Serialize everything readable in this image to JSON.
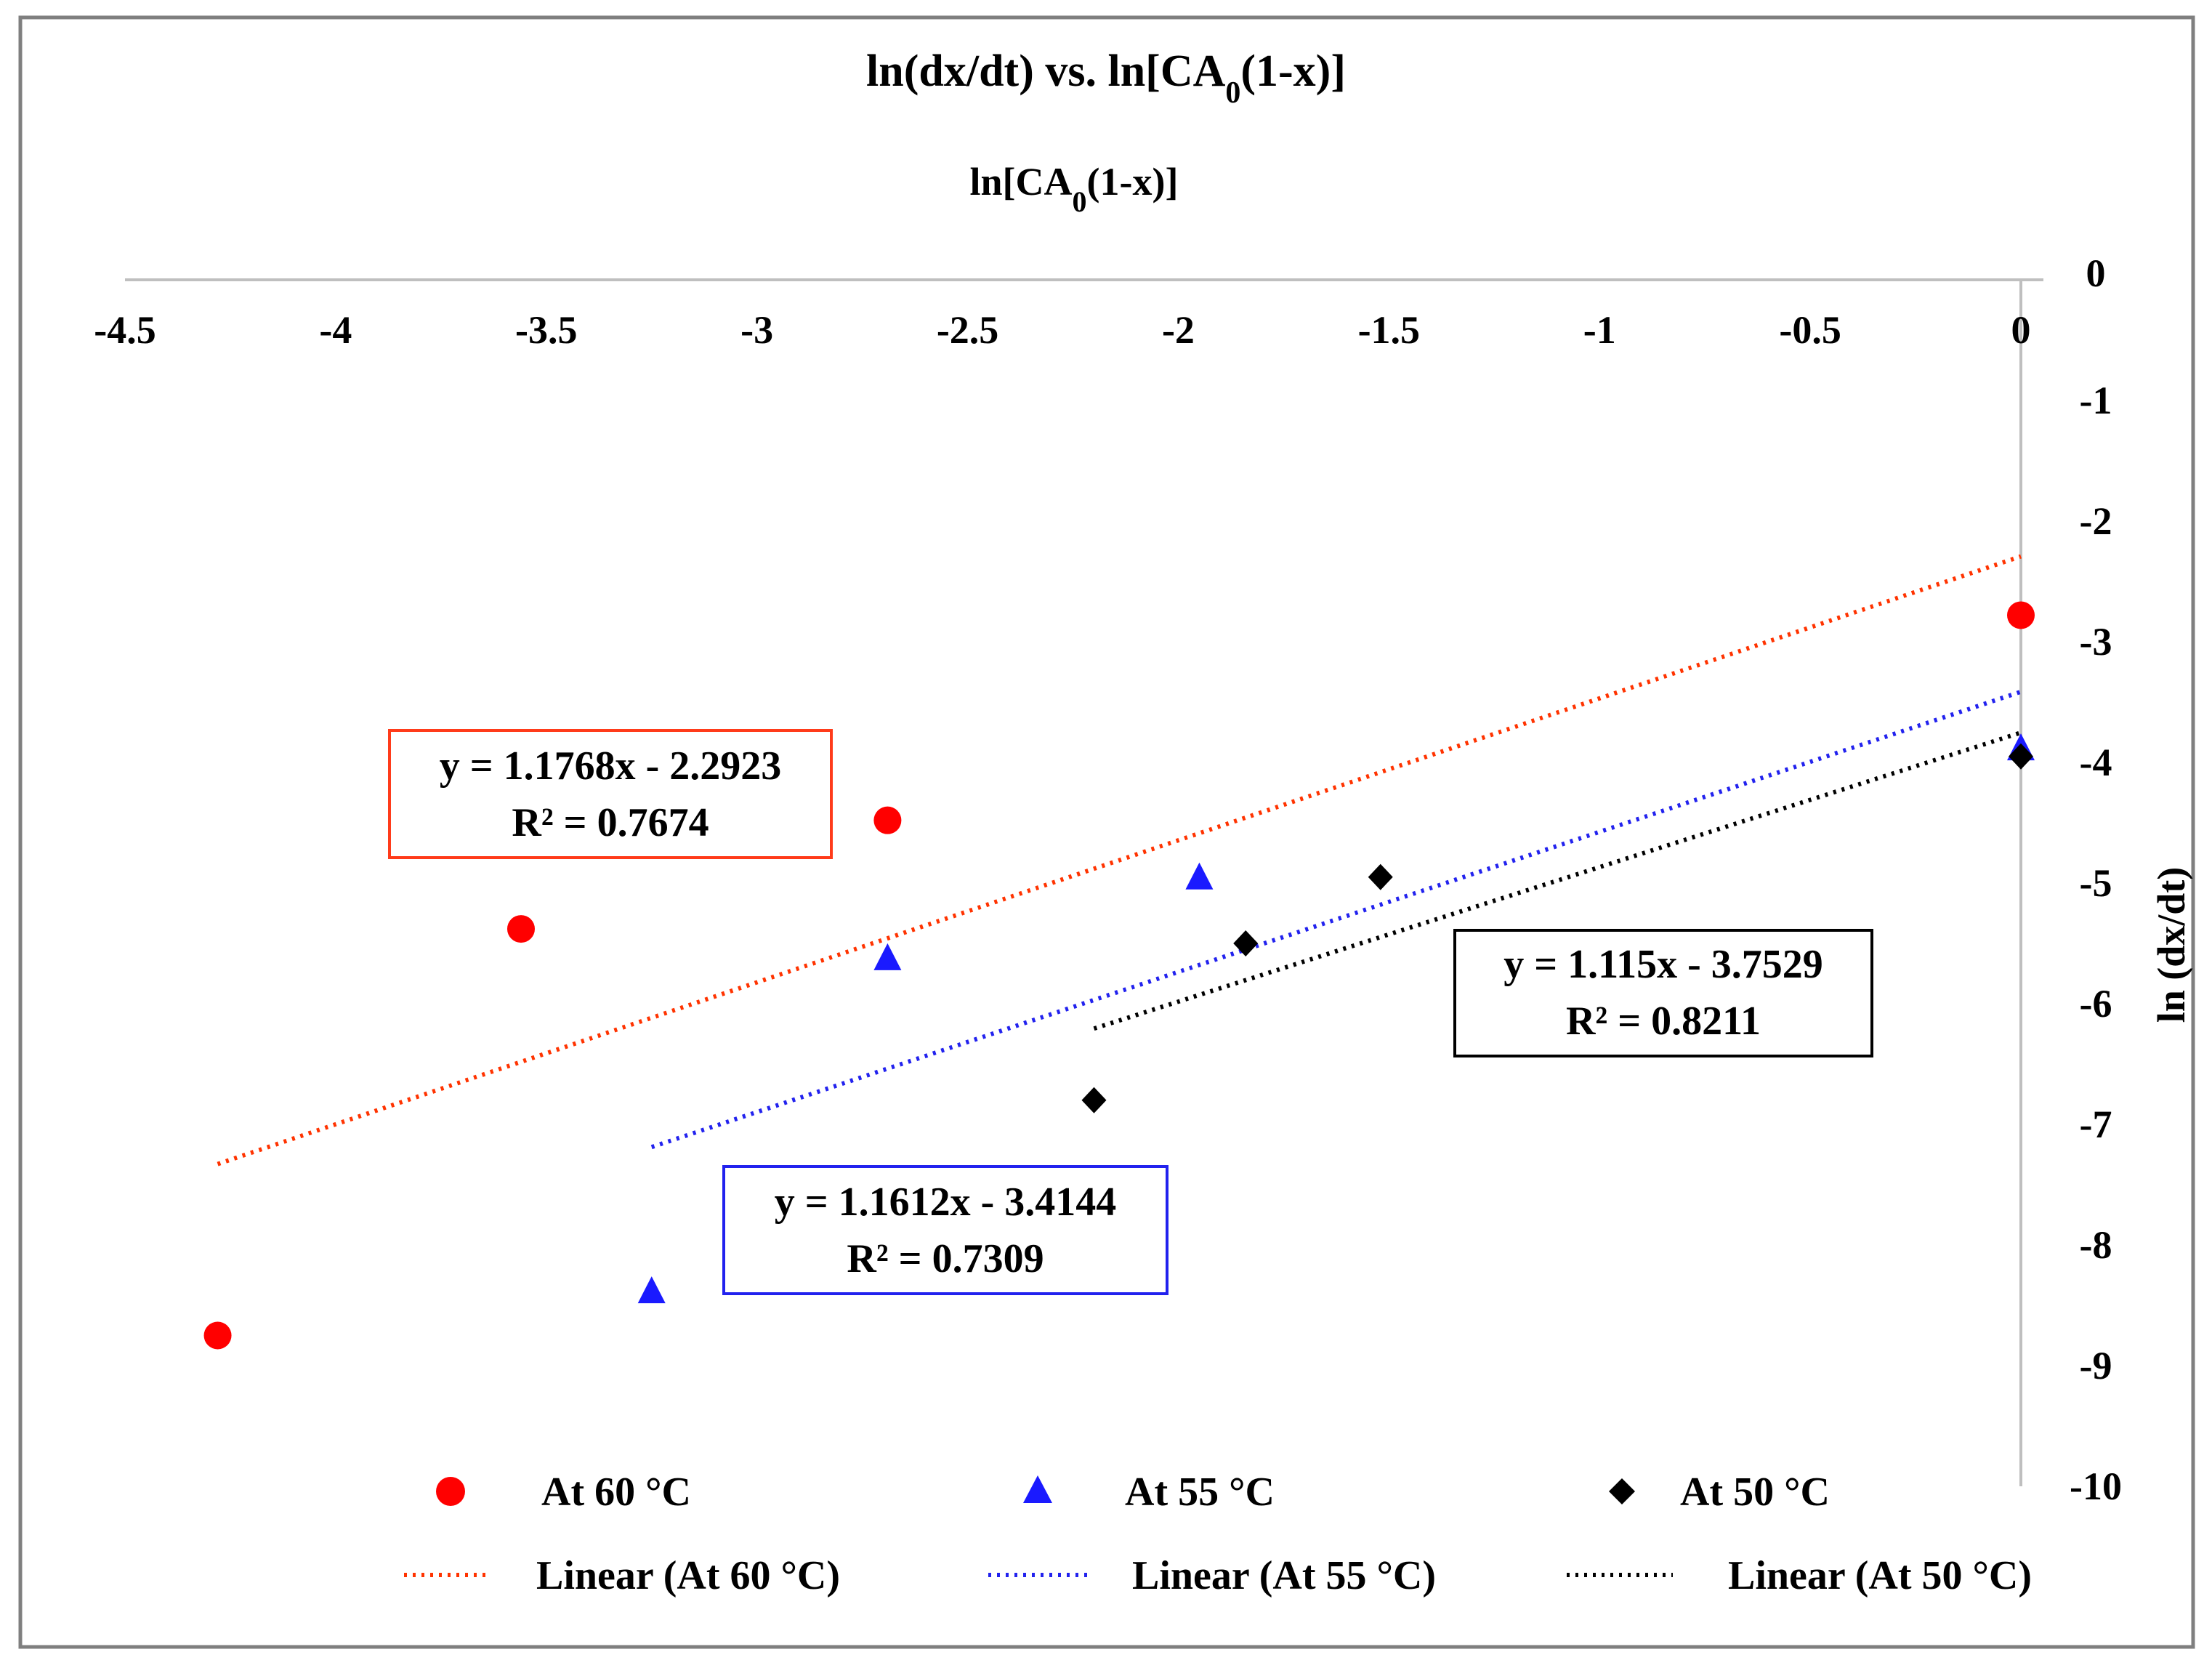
{
  "chart_data": {
    "type": "scatter",
    "title_main": "ln(dx/dt)  vs. ln[CA",
    "title_sub": "0",
    "title_end": "(1-x)]",
    "xlabel_main": "ln[CA",
    "xlabel_sub": "0",
    "xlabel_end": "(1-x)]",
    "ylabel": "ln (dx/dt)",
    "xlim": [
      -4.5,
      0
    ],
    "ylim": [
      -10,
      0
    ],
    "x_ticks": [
      -4.5,
      -4,
      -3.5,
      -3,
      -2.5,
      -2,
      -1.5,
      -1,
      -0.5,
      0
    ],
    "y_ticks": [
      0,
      -1,
      -2,
      -3,
      -4,
      -5,
      -6,
      -7,
      -8,
      -9,
      -10
    ],
    "x_tick_labels": [
      "-4.5",
      "-4",
      "-3.5",
      "-3",
      "-2.5",
      "-2",
      "-1.5",
      "-1",
      "-0.5",
      "0"
    ],
    "y_tick_labels": [
      "0",
      "-1",
      "-2",
      "-3",
      "-4",
      "-5",
      "-6",
      "-7",
      "-8",
      "-9",
      "-10"
    ],
    "grid": false,
    "legend_position": "bottom",
    "series": [
      {
        "name": "At 60 °C",
        "marker": "circle",
        "color": "#ff0000",
        "points": [
          [
            -4.28,
            -8.75
          ],
          [
            -3.56,
            -5.38
          ],
          [
            -2.69,
            -4.48
          ],
          [
            0.0,
            -2.78
          ]
        ],
        "trendline": {
          "name": "Linear (At 60 °C)",
          "slope": 1.1768,
          "intercept": -2.2923,
          "x_range": [
            -4.28,
            0
          ],
          "color": "#ff3300"
        },
        "equation": "y = 1.1768x - 2.2923",
        "r2": "R² = 0.7674"
      },
      {
        "name": "At 55 °C",
        "marker": "triangle",
        "color": "#1a1aff",
        "points": [
          [
            -3.25,
            -8.38
          ],
          [
            -2.69,
            -5.62
          ],
          [
            -1.95,
            -4.95
          ],
          [
            0.0,
            -3.88
          ]
        ],
        "trendline": {
          "name": "Linear (At 55 °C)",
          "slope": 1.1612,
          "intercept": -3.4144,
          "x_range": [
            -3.25,
            0
          ],
          "color": "#2222ee"
        },
        "equation": "y = 1.1612x - 3.4144",
        "r2": "R² = 0.7309"
      },
      {
        "name": "At 50 °C",
        "marker": "diamond",
        "color": "#000000",
        "points": [
          [
            -2.2,
            -6.8
          ],
          [
            -1.84,
            -5.5
          ],
          [
            -1.52,
            -4.95
          ],
          [
            0.0,
            -3.95
          ]
        ],
        "trendline": {
          "name": "Linear (At 50 °C)",
          "slope": 1.115,
          "intercept": -3.7529,
          "x_range": [
            -2.2,
            0
          ],
          "color": "#000000"
        },
        "equation": "y = 1.115x - 3.7529",
        "r2": "R² = 0.8211"
      }
    ]
  }
}
